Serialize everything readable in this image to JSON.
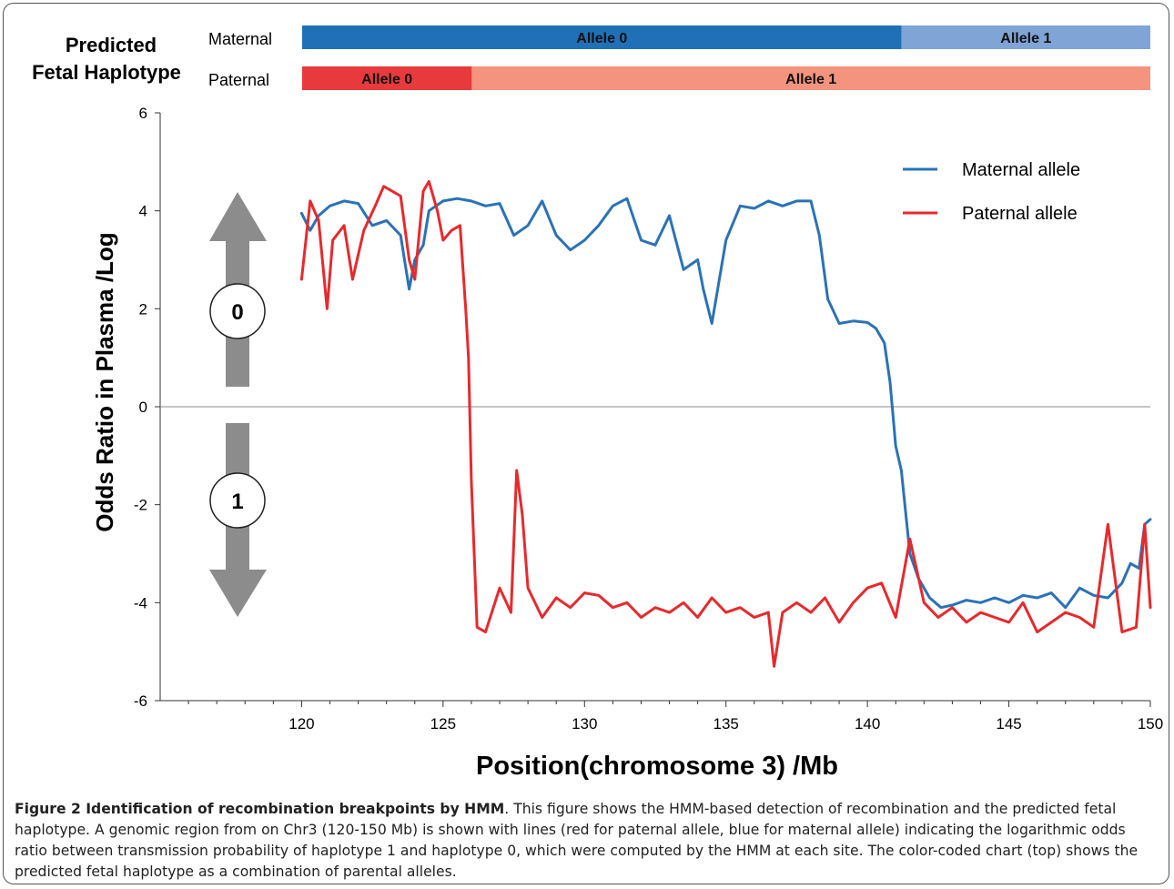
{
  "haplotype": {
    "heading_line1": "Predicted",
    "heading_line2": "Fetal Haplotype",
    "maternal_label": "Maternal",
    "paternal_label": "Paternal",
    "maternal_segments": [
      {
        "label": "Allele 0",
        "start": 120,
        "end": 141.2,
        "color": "#2070b8"
      },
      {
        "label": "Allele 1",
        "start": 141.2,
        "end": 150,
        "color": "#7fa4d6"
      }
    ],
    "paternal_segments": [
      {
        "label": "Allele 0",
        "start": 120,
        "end": 126,
        "color": "#e8393c"
      },
      {
        "label": "Allele 1",
        "start": 126,
        "end": 150,
        "color": "#f4937e"
      }
    ]
  },
  "arrows": {
    "up_label": "0",
    "down_label": "1"
  },
  "caption": {
    "title": "Figure 2 Identification of recombination breakpoints by HMM",
    "text": ". This figure shows the HMM-based detection of recombination and the predicted fetal haplotype. A genomic region from on Chr3 (120-150 Mb) is shown with lines (red for paternal allele, blue for maternal allele) indicating the logarithmic odds ratio between transmission probability of haplotype 1 and haplotype 0, which were computed by the HMM at each site. The color-coded chart (top) shows the predicted fetal haplotype as a combination of parental alleles."
  },
  "chart_data": {
    "type": "line",
    "xlabel": "Position(chromosome 3) /Mb",
    "ylabel": "Odds Ratio in Plasma /Log",
    "xlim": [
      115,
      150
    ],
    "ylim": [
      -6,
      6
    ],
    "xticks": [
      120,
      125,
      130,
      135,
      140,
      145,
      150
    ],
    "yticks": [
      -6,
      -4,
      -2,
      0,
      2,
      4,
      6
    ],
    "legend_position": "top-right",
    "series": [
      {
        "name": "Maternal allele",
        "color": "#2a72b8",
        "x": [
          120,
          120.3,
          120.6,
          121,
          121.5,
          122,
          122.5,
          123,
          123.5,
          123.8,
          124,
          124.3,
          124.5,
          125,
          125.5,
          126,
          126.5,
          127,
          127.5,
          128,
          128.5,
          129,
          129.5,
          130,
          130.5,
          131,
          131.5,
          132,
          132.5,
          133,
          133.5,
          134,
          134.2,
          134.5,
          135,
          135.5,
          136,
          136.5,
          137,
          137.5,
          138,
          138.3,
          138.6,
          139,
          139.5,
          140,
          140.3,
          140.6,
          140.8,
          141,
          141.2,
          141.5,
          141.8,
          142.2,
          142.6,
          143,
          143.5,
          144,
          144.5,
          145,
          145.5,
          146,
          146.5,
          147,
          147.5,
          148,
          148.5,
          149,
          149.3,
          149.6,
          149.8,
          150
        ],
        "y": [
          3.95,
          3.6,
          3.9,
          4.1,
          4.2,
          4.15,
          3.7,
          3.8,
          3.5,
          2.4,
          3.0,
          3.3,
          4.0,
          4.2,
          4.25,
          4.2,
          4.1,
          4.15,
          3.5,
          3.7,
          4.2,
          3.5,
          3.2,
          3.4,
          3.7,
          4.1,
          4.25,
          3.4,
          3.3,
          3.9,
          2.8,
          3.0,
          2.4,
          1.7,
          3.4,
          4.1,
          4.05,
          4.2,
          4.1,
          4.2,
          4.2,
          3.5,
          2.2,
          1.7,
          1.75,
          1.72,
          1.6,
          1.3,
          0.5,
          -0.8,
          -1.3,
          -3.0,
          -3.5,
          -3.9,
          -4.1,
          -4.05,
          -3.95,
          -4.0,
          -3.9,
          -4.0,
          -3.85,
          -3.9,
          -3.8,
          -4.1,
          -3.7,
          -3.85,
          -3.9,
          -3.6,
          -3.2,
          -3.3,
          -2.4,
          -2.3
        ]
      },
      {
        "name": "Paternal allele",
        "color": "#e8292c",
        "x": [
          120,
          120.3,
          120.6,
          120.9,
          121.1,
          121.5,
          121.8,
          122.2,
          122.6,
          122.9,
          123.2,
          123.5,
          123.8,
          124,
          124.3,
          124.5,
          124.8,
          125,
          125.3,
          125.6,
          125.8,
          125.9,
          126,
          126.2,
          126.5,
          127,
          127.4,
          127.6,
          127.8,
          128,
          128.5,
          129,
          129.5,
          130,
          130.5,
          131,
          131.5,
          132,
          132.5,
          133,
          133.5,
          134,
          134.5,
          135,
          135.5,
          136,
          136.5,
          136.7,
          137,
          137.5,
          138,
          138.5,
          139,
          139.5,
          140,
          140.5,
          141,
          141.5,
          142,
          142.5,
          143,
          143.5,
          144,
          144.5,
          145,
          145.5,
          146,
          146.5,
          147,
          147.5,
          148,
          148.5,
          149,
          149.5,
          149.8,
          150
        ],
        "y": [
          2.6,
          4.2,
          3.8,
          2.0,
          3.4,
          3.7,
          2.6,
          3.6,
          4.1,
          4.5,
          4.4,
          4.3,
          3.0,
          2.6,
          4.4,
          4.6,
          4.0,
          3.4,
          3.6,
          3.7,
          2.0,
          1.0,
          -1.5,
          -4.5,
          -4.6,
          -3.7,
          -4.2,
          -1.3,
          -2.2,
          -3.7,
          -4.3,
          -3.9,
          -4.1,
          -3.8,
          -3.85,
          -4.1,
          -4.0,
          -4.3,
          -4.1,
          -4.2,
          -4.0,
          -4.3,
          -3.9,
          -4.2,
          -4.1,
          -4.3,
          -4.2,
          -5.3,
          -4.2,
          -4.0,
          -4.2,
          -3.9,
          -4.4,
          -4.0,
          -3.7,
          -3.6,
          -4.3,
          -2.7,
          -4.0,
          -4.3,
          -4.1,
          -4.4,
          -4.2,
          -4.3,
          -4.4,
          -4.0,
          -4.6,
          -4.4,
          -4.2,
          -4.3,
          -4.5,
          -2.4,
          -4.6,
          -4.5,
          -2.4,
          -4.1
        ]
      }
    ]
  }
}
